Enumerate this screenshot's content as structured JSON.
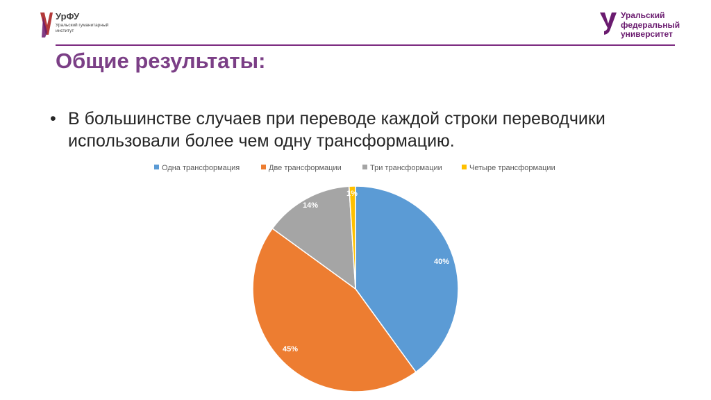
{
  "header": {
    "left_logo": {
      "brand": "УрФУ",
      "subtitle": "Уральский гуманитарный институт"
    },
    "right_logo": {
      "line1": "Уральский",
      "line2": "федеральный",
      "line3": "университет"
    },
    "brand_color": "#7b2a7f"
  },
  "slide": {
    "title": "Общие результаты:",
    "bullet": "В большинстве случаев при переводе каждой строки переводчики использовали более чем одну трансформацию."
  },
  "chart_data": {
    "type": "pie",
    "title": "",
    "legend_position": "top",
    "categories": [
      "Одна трансформация",
      "Две трансформации",
      "Три трансформации",
      "Четыре трансформации"
    ],
    "values": [
      40,
      45,
      14,
      1
    ],
    "labels": [
      "40%",
      "45%",
      "14%",
      "1%"
    ],
    "colors": [
      "#5b9bd5",
      "#ed7d31",
      "#a5a5a5",
      "#ffc000"
    ]
  }
}
